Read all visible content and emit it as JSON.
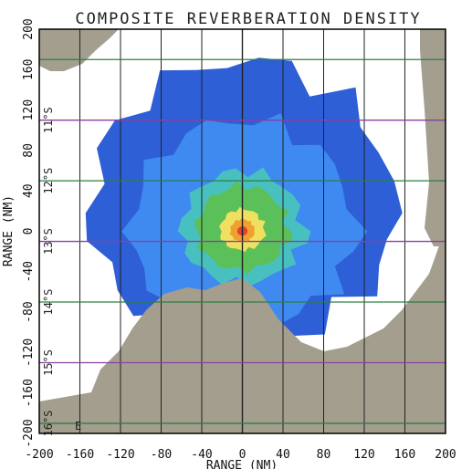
{
  "chart_data": {
    "type": "heatmap",
    "title": "COMPOSITE REVERBERATION DENSITY",
    "xlabel": "RANGE (NM)",
    "ylabel": "RANGE (NM)",
    "xlim": [
      -200,
      200
    ],
    "ylim": [
      -200,
      200
    ],
    "x_ticks": [
      "-200",
      "-160",
      "-120",
      "-80",
      "-40",
      "0",
      "40",
      "80",
      "120",
      "160",
      "200"
    ],
    "y_ticks": [
      "200",
      "160",
      "120",
      "80",
      "40",
      "0",
      "-40",
      "-80",
      "-120",
      "-160",
      "-200"
    ],
    "latitude_labels": [
      {
        "text": "11°S",
        "y": 110
      },
      {
        "text": "12°S",
        "y": 50
      },
      {
        "text": "13°S",
        "y": -10
      },
      {
        "text": "14°S",
        "y": -70
      },
      {
        "text": "15°S",
        "y": -130
      },
      {
        "text": "16°S",
        "y": -190
      }
    ],
    "corner_label": "E",
    "grid": true,
    "colors": {
      "land": "#a39e8e",
      "level1": "#2f5fd6",
      "level2": "#3f8af0",
      "level3": "#48c0c0",
      "level4": "#5cc05a",
      "level5": "#f0e060",
      "level6": "#f0a030",
      "level7": "#e04030",
      "grid_purple": "#8a40a0",
      "grid_green": "#2a8040",
      "grid_dark": "#222222"
    },
    "density_center": [
      0,
      0
    ],
    "density_levels": [
      {
        "level": 1,
        "radius_nm": 150
      },
      {
        "level": 2,
        "radius_nm": 110
      },
      {
        "level": 3,
        "radius_nm": 60
      },
      {
        "level": 4,
        "radius_nm": 45
      },
      {
        "level": 5,
        "radius_nm": 22
      },
      {
        "level": 6,
        "radius_nm": 12
      },
      {
        "level": 7,
        "radius_nm": 5
      }
    ]
  }
}
